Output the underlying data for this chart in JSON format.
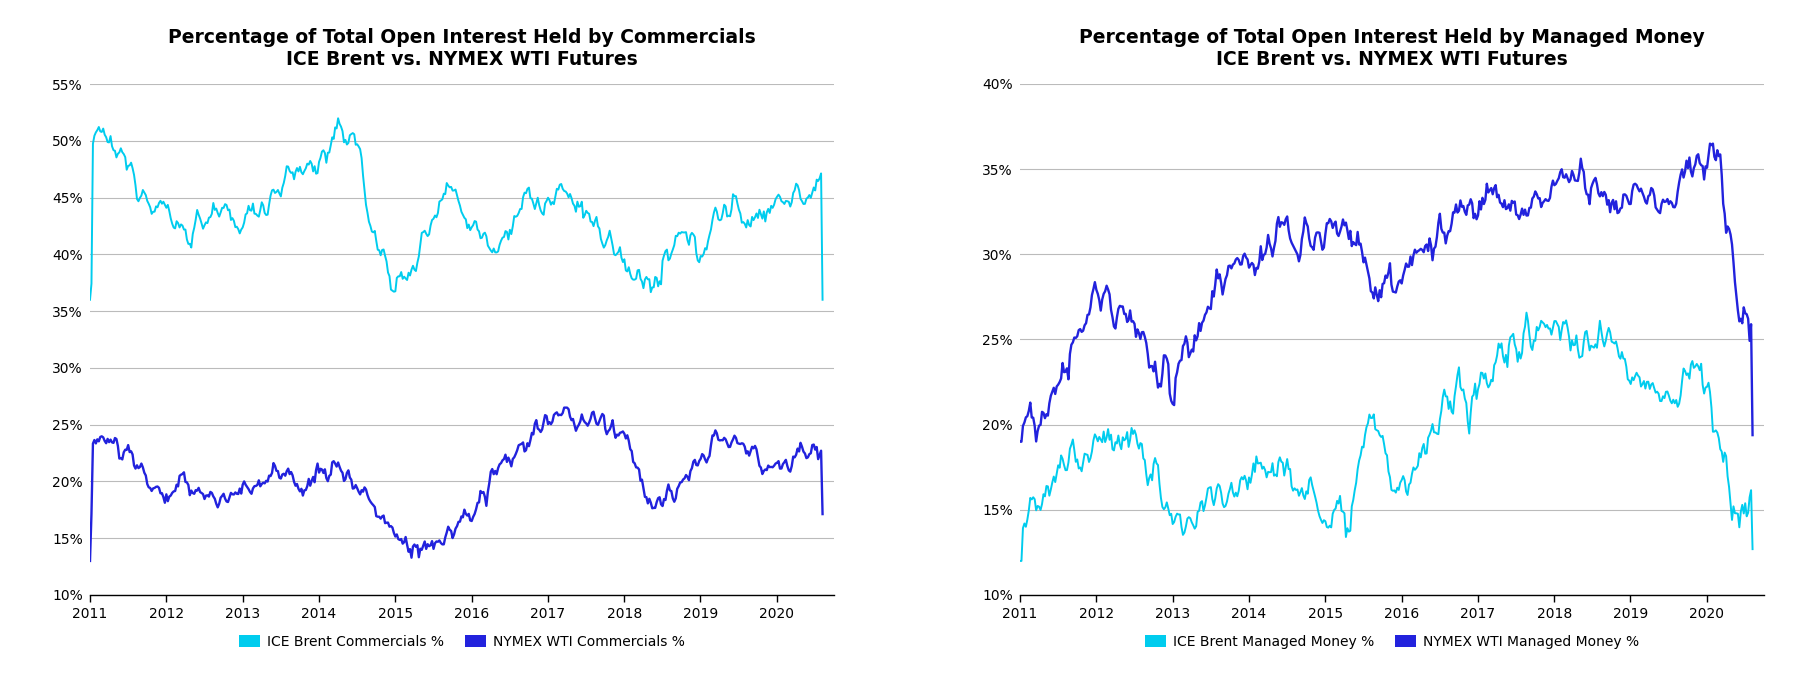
{
  "chart1": {
    "title_line1": "Percentage of Total Open Interest Held by Commercials",
    "title_line2": "ICE Brent vs. NYMEX WTI Futures",
    "ylim": [
      0.1,
      0.55
    ],
    "yticks": [
      0.1,
      0.15,
      0.2,
      0.25,
      0.3,
      0.35,
      0.4,
      0.45,
      0.5,
      0.55
    ],
    "ice_color": "#00CCEE",
    "wti_color": "#2222DD",
    "legend_labels": [
      "ICE Brent Commercials %",
      "NYMEX WTI Commercials %"
    ]
  },
  "chart2": {
    "title_line1": "Percentage of Total Open Interest Held by Managed Money",
    "title_line2": "ICE Brent vs. NYMEX WTI Futures",
    "ylim": [
      0.1,
      0.4
    ],
    "yticks": [
      0.1,
      0.15,
      0.2,
      0.25,
      0.3,
      0.35,
      0.4
    ],
    "ice_color": "#00CCEE",
    "wti_color": "#2222DD",
    "legend_labels": [
      "ICE Brent Managed Money %",
      "NYMEX WTI Managed Money %"
    ]
  },
  "xlim_start": 2011.0,
  "xlim_end": 2020.75,
  "xticks": [
    2011,
    2012,
    2013,
    2014,
    2015,
    2016,
    2017,
    2018,
    2019,
    2020
  ],
  "background_color": "#FFFFFF",
  "grid_color": "#BBBBBB",
  "title_fontsize": 13.5,
  "tick_fontsize": 10,
  "legend_fontsize": 10,
  "linewidth": 1.4
}
